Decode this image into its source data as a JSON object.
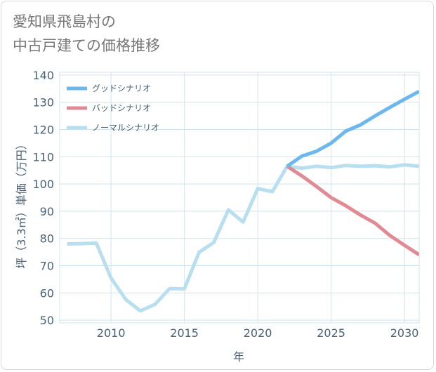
{
  "title": {
    "line1": "愛知県飛島村の",
    "line2": "中古戸建ての価格推移"
  },
  "colors": {
    "good": "#6cb8ee",
    "bad": "#e28a93",
    "normal": "#b8dff0",
    "grid": "#d0e4ee",
    "axis_text": "#4a6377",
    "title_text": "#777777"
  },
  "chart_data": {
    "type": "line",
    "title": "愛知県飛島村の中古戸建ての価格推移",
    "xlabel": "年",
    "ylabel": "坪（3.3㎡）単価（万円）",
    "xlim": [
      2006.5,
      2031
    ],
    "ylim": [
      49,
      141
    ],
    "x_ticks": [
      2010,
      2015,
      2020,
      2025,
      2030
    ],
    "y_ticks": [
      50,
      60,
      70,
      80,
      90,
      100,
      110,
      120,
      130,
      140
    ],
    "legend_position": "top-left",
    "series": [
      {
        "name": "グッドシナリオ",
        "color": "#6cb8ee",
        "x": [
          2022,
          2023,
          2024,
          2025,
          2026,
          2027,
          2028,
          2029,
          2030,
          2031
        ],
        "values": [
          106.5,
          110.2,
          112.0,
          115.0,
          119.4,
          121.7,
          125.0,
          128.1,
          131.1,
          134.0
        ]
      },
      {
        "name": "バッドシナリオ",
        "color": "#e28a93",
        "x": [
          2022,
          2023,
          2024,
          2025,
          2026,
          2027,
          2028,
          2029,
          2030,
          2031
        ],
        "values": [
          106.5,
          103.0,
          99.1,
          95.0,
          92.0,
          88.6,
          85.6,
          81.1,
          77.5,
          74.0
        ]
      },
      {
        "name": "ノーマルシナリオ",
        "color": "#b8dff0",
        "x": [
          2007,
          2008,
          2009,
          2010,
          2011,
          2012,
          2013,
          2014,
          2015,
          2016,
          2017,
          2018,
          2019,
          2020,
          2021,
          2022,
          2023,
          2024,
          2025,
          2026,
          2027,
          2028,
          2029,
          2030,
          2031
        ],
        "values": [
          78.0,
          78.1,
          78.3,
          65.5,
          57.6,
          53.4,
          55.8,
          61.6,
          61.5,
          74.9,
          78.5,
          90.5,
          86.0,
          98.3,
          97.2,
          106.5,
          105.8,
          106.5,
          106.0,
          106.8,
          106.5,
          106.7,
          106.3,
          107.0,
          106.5
        ]
      }
    ]
  }
}
